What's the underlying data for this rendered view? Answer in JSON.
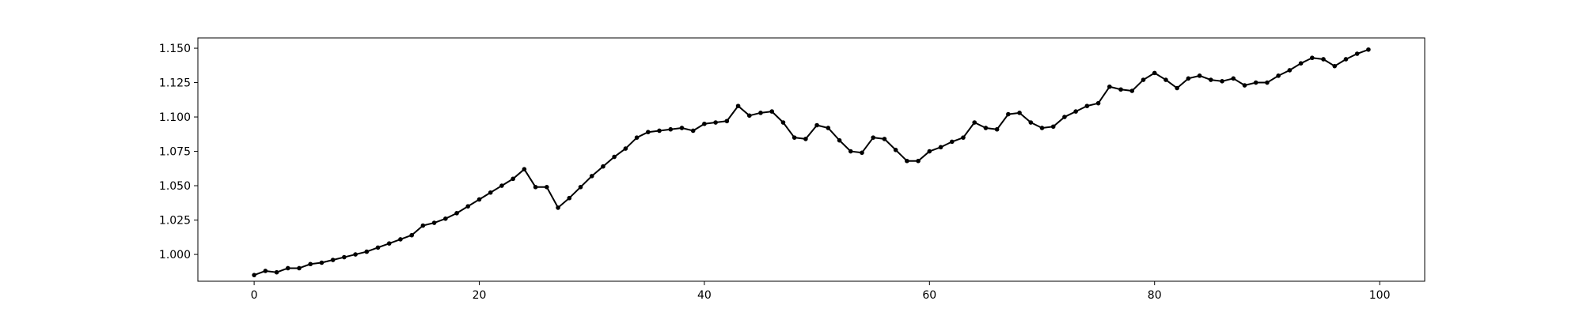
{
  "chart_data": {
    "type": "line",
    "title": "",
    "xlabel": "",
    "ylabel": "",
    "xlim": [
      -5,
      104
    ],
    "ylim": [
      0.9805,
      1.1575
    ],
    "xticks": [
      0,
      20,
      40,
      60,
      80,
      100
    ],
    "xtick_labels": [
      "0",
      "20",
      "40",
      "60",
      "80",
      "100"
    ],
    "yticks": [
      1.0,
      1.025,
      1.05,
      1.075,
      1.1,
      1.125,
      1.15
    ],
    "ytick_labels": [
      "1.000",
      "1.025",
      "1.050",
      "1.075",
      "1.100",
      "1.125",
      "1.150"
    ],
    "grid": false,
    "legend": "none",
    "series": [
      {
        "color": "#000000",
        "marker": "circle",
        "x": [
          0,
          1,
          2,
          3,
          4,
          5,
          6,
          7,
          8,
          9,
          10,
          11,
          12,
          13,
          14,
          15,
          16,
          17,
          18,
          19,
          20,
          21,
          22,
          23,
          24,
          25,
          26,
          27,
          28,
          29,
          30,
          31,
          32,
          33,
          34,
          35,
          36,
          37,
          38,
          39,
          40,
          41,
          42,
          43,
          44,
          45,
          46,
          47,
          48,
          49,
          50,
          51,
          52,
          53,
          54,
          55,
          56,
          57,
          58,
          59,
          60,
          61,
          62,
          63,
          64,
          65,
          66,
          67,
          68,
          69,
          70,
          71,
          72,
          73,
          74,
          75,
          76,
          77,
          78,
          79,
          80,
          81,
          82,
          83,
          84,
          85,
          86,
          87,
          88,
          89,
          90,
          91,
          92,
          93,
          94,
          95,
          96,
          97,
          98,
          99
        ],
        "values": [
          0.985,
          0.988,
          0.987,
          0.99,
          0.99,
          0.993,
          0.994,
          0.996,
          0.998,
          1.0,
          1.002,
          1.005,
          1.008,
          1.011,
          1.014,
          1.021,
          1.023,
          1.026,
          1.03,
          1.035,
          1.04,
          1.045,
          1.05,
          1.055,
          1.062,
          1.049,
          1.049,
          1.034,
          1.041,
          1.049,
          1.057,
          1.064,
          1.071,
          1.077,
          1.085,
          1.089,
          1.09,
          1.091,
          1.092,
          1.09,
          1.095,
          1.096,
          1.097,
          1.108,
          1.101,
          1.103,
          1.104,
          1.096,
          1.085,
          1.084,
          1.094,
          1.092,
          1.083,
          1.075,
          1.074,
          1.085,
          1.084,
          1.076,
          1.068,
          1.068,
          1.075,
          1.078,
          1.082,
          1.085,
          1.096,
          1.092,
          1.091,
          1.102,
          1.103,
          1.096,
          1.092,
          1.093,
          1.1,
          1.104,
          1.108,
          1.11,
          1.122,
          1.12,
          1.119,
          1.127,
          1.132,
          1.127,
          1.121,
          1.128,
          1.13,
          1.127,
          1.126,
          1.128,
          1.123,
          1.125,
          1.125,
          1.13,
          1.134,
          1.139,
          1.143,
          1.142,
          1.137,
          1.142,
          1.146,
          1.149
        ]
      }
    ]
  }
}
